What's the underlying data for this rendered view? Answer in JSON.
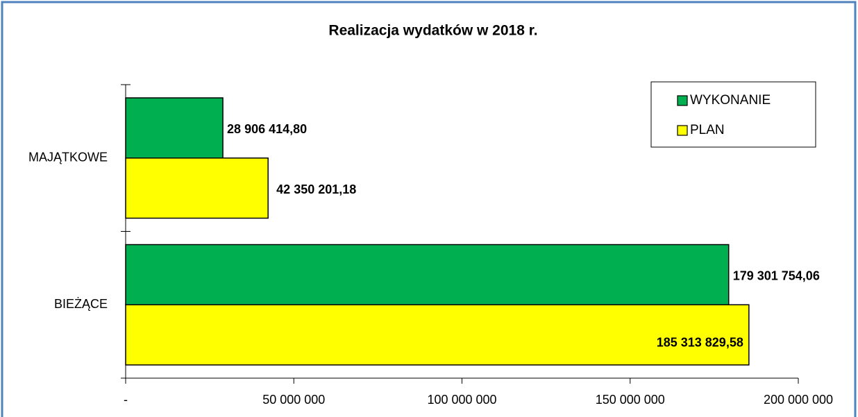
{
  "chart_data": {
    "type": "bar",
    "orientation": "horizontal",
    "title": "Realizacja wydatków w 2018 r.",
    "categories": [
      "MAJĄTKOWE",
      "BIEŻĄCE"
    ],
    "series": [
      {
        "name": "WYKONANIE",
        "color": "#00b050",
        "values": [
          28906414.8,
          179301754.06
        ],
        "value_labels": [
          "28 906 414,80",
          "179 301 754,06"
        ]
      },
      {
        "name": "PLAN",
        "color": "#ffff00",
        "values": [
          42350201.18,
          185313829.58
        ],
        "value_labels": [
          "42 350 201,18",
          "185 313 829,58"
        ]
      }
    ],
    "xlim": [
      0,
      200000000
    ],
    "xticks": [
      {
        "value": 0,
        "label": "-"
      },
      {
        "value": 50000000,
        "label": "50 000 000"
      },
      {
        "value": 100000000,
        "label": "100 000 000"
      },
      {
        "value": 150000000,
        "label": "150 000 000"
      },
      {
        "value": 200000000,
        "label": "200 000 000"
      }
    ],
    "legend": "top-right"
  }
}
